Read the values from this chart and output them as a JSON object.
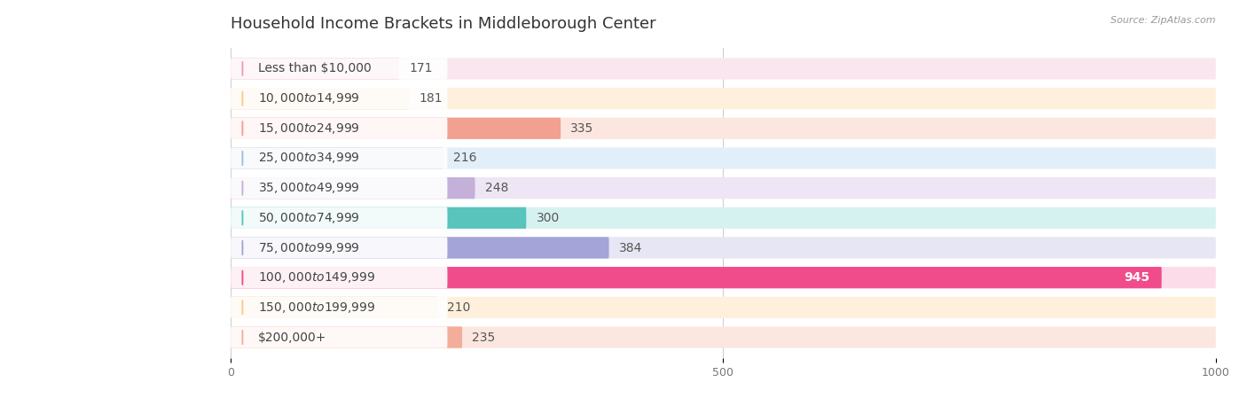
{
  "title": "Household Income Brackets in Middleborough Center",
  "source": "Source: ZipAtlas.com",
  "categories": [
    "Less than $10,000",
    "$10,000 to $14,999",
    "$15,000 to $24,999",
    "$25,000 to $34,999",
    "$35,000 to $49,999",
    "$50,000 to $74,999",
    "$75,000 to $99,999",
    "$100,000 to $149,999",
    "$150,000 to $199,999",
    "$200,000+"
  ],
  "values": [
    171,
    181,
    335,
    216,
    248,
    300,
    384,
    945,
    210,
    235
  ],
  "bar_colors": [
    "#F49BB5",
    "#FAC98A",
    "#F2A090",
    "#A4BCE0",
    "#C4B0D8",
    "#58C4BC",
    "#A4A4D8",
    "#F04C8C",
    "#FAC98A",
    "#F2AE9A"
  ],
  "bar_bg_colors": [
    "#FAE6EE",
    "#FEF0DC",
    "#FCE6E0",
    "#E2EEF8",
    "#EEE6F4",
    "#D6F2F0",
    "#E6E6F4",
    "#FCDCE8",
    "#FEF0DC",
    "#FCE6E0"
  ],
  "circle_colors": [
    "#F49BB5",
    "#FAC98A",
    "#F2A090",
    "#A4BCE0",
    "#C4B0D8",
    "#58C4BC",
    "#A4A4D8",
    "#F04C8C",
    "#FAC98A",
    "#F2AE9A"
  ],
  "xlim": [
    0,
    1000
  ],
  "xticks": [
    0,
    500,
    1000
  ],
  "background_color": "#FFFFFF",
  "bar_height": 0.72,
  "title_fontsize": 13,
  "label_fontsize": 10,
  "value_fontsize": 10,
  "axis_fontsize": 9,
  "grid_color": "#CCCCCC",
  "label_text_color": "#444444",
  "value_color_default": "#555555",
  "value_color_highlight": "#FFFFFF",
  "highlight_index": 7
}
